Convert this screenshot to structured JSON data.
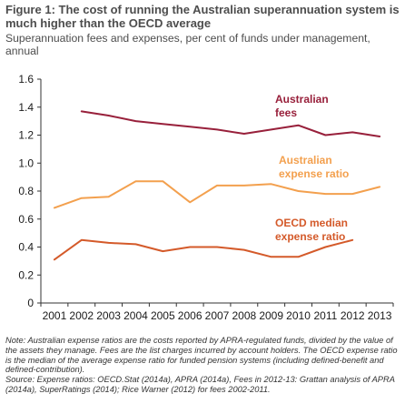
{
  "figure": {
    "title": "Figure 1: The cost of running the Australian superannuation system is much higher than the OECD average",
    "subtitle": "Superannuation fees and expenses, per cent of funds under management, annual"
  },
  "notes": {
    "note": "Note: Australian expense ratios are the costs reported by APRA-regulated funds, divided by the value of the assets they manage. Fees are the list charges incurred by account holders. The OECD expense ratio is the median of the average expense ratio for funded pension systems (including defined-benefit and defined-contribution).",
    "source": "Source: Expense ratios: OECD.Stat (2014a), APRA (2014a), Fees in 2012-13: Grattan analysis of  APRA (2014a), SuperRatings (2014); Rice Warner (2012) for fees 2002-2011."
  },
  "chart_data": {
    "type": "line",
    "title": "Figure 1: The cost of running the Australian superannuation system is much higher than the OECD average",
    "subtitle": "Superannuation fees and expenses, per cent of funds under management, annual",
    "xlabel": "",
    "ylabel": "",
    "x": [
      2001,
      2002,
      2003,
      2004,
      2005,
      2006,
      2007,
      2008,
      2009,
      2010,
      2011,
      2012,
      2013
    ],
    "ylim": [
      0,
      1.6
    ],
    "yticks": [
      "0",
      "0.2",
      "0.4",
      "0.6",
      "0.8",
      "1.0",
      "1.2",
      "1.4",
      "1.6"
    ],
    "grid": false,
    "series": [
      {
        "name": "Australian fees",
        "label_lines": [
          "Australian",
          "fees"
        ],
        "color": "#98203b",
        "values": [
          null,
          1.37,
          1.34,
          1.3,
          1.28,
          1.26,
          1.24,
          1.21,
          1.24,
          1.27,
          1.2,
          1.22,
          1.19
        ]
      },
      {
        "name": "Australian expense ratio",
        "label_lines": [
          "Australian",
          "expense ratio"
        ],
        "color": "#f3a04e",
        "values": [
          0.68,
          0.75,
          0.76,
          0.87,
          0.87,
          0.72,
          0.84,
          0.84,
          0.85,
          0.8,
          0.78,
          0.78,
          0.83
        ]
      },
      {
        "name": "OECD median expense ratio",
        "label_lines": [
          "OECD median",
          "expense ratio"
        ],
        "color": "#d45a2a",
        "values": [
          0.31,
          0.45,
          0.43,
          0.42,
          0.37,
          0.4,
          0.4,
          0.38,
          0.33,
          0.33,
          0.4,
          0.45,
          null
        ]
      }
    ]
  }
}
